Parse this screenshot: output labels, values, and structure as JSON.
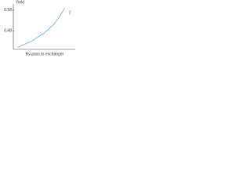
{
  "chart_data": {
    "type": "line",
    "y_label": "Yield",
    "x_label": "By-pass to exchanger",
    "x": [
      0.07,
      0.3,
      0.5,
      0.65,
      0.75,
      0.83
    ],
    "xlim": [
      0,
      1
    ],
    "series": [
      {
        "name": "7",
        "color": "#5aa9e0",
        "values": [
          0.4,
          0.43,
          0.47,
          0.51,
          0.55,
          0.59
        ]
      }
    ],
    "ylim": [
      0.39,
      0.61
    ],
    "yticks": [
      0.48,
      0.58
    ]
  }
}
